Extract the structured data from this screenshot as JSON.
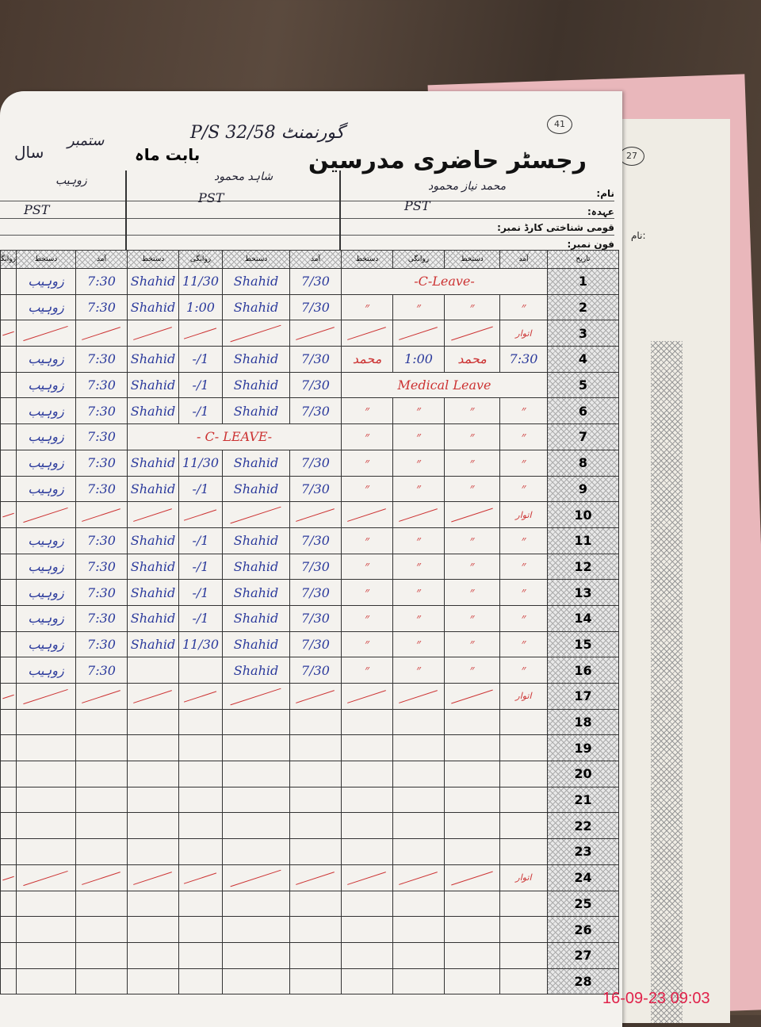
{
  "header": {
    "title": "رجسٹر حاضری مدرسین",
    "school": "گورنمنٹ P/S 32/58",
    "month_label": "بابت ماہ",
    "month": "ستمبر",
    "year_label": "سال",
    "page_number": "41",
    "back_page_number": "27"
  },
  "info_labels": {
    "name": "نام:",
    "designation": "عہدہ:",
    "cnic": "قومی شناختی کارڈ نمبر:",
    "phone": "فون نمبر:"
  },
  "teachers": [
    {
      "name": "محمد نیاز محمود",
      "designation": "PST"
    },
    {
      "name": "شاہد محمود",
      "designation": "PST"
    },
    {
      "name": "زوہیب",
      "designation": "PST"
    }
  ],
  "columns": {
    "date": "تاریخ",
    "arrival": "آمد",
    "signature": "دستخط",
    "departure": "روانگی"
  },
  "ink_colors": {
    "blue": "#2b3a9c",
    "red": "#cc3333"
  },
  "rows": [
    {
      "date": "1",
      "t1_note": "-C-Leave-",
      "t2": [
        "7/30",
        "Shahid",
        "11/30",
        "Shahid"
      ],
      "t3": [
        "7:30",
        "زوہیب"
      ]
    },
    {
      "date": "2",
      "t1": [
        "״",
        "״",
        "״",
        "״"
      ],
      "t2": [
        "7/30",
        "Shahid",
        "1:00",
        "Shahid"
      ],
      "t3": [
        "7:30",
        "زوہیب"
      ]
    },
    {
      "date": "3",
      "sunday": "اتوار"
    },
    {
      "date": "4",
      "t1": [
        "7:30",
        "محمد",
        "1:00",
        "محمد"
      ],
      "t2": [
        "7/30",
        "Shahid",
        "1/-",
        "Shahid"
      ],
      "t3": [
        "7:30",
        "زوہیب"
      ]
    },
    {
      "date": "5",
      "t1_note": "Medical Leave",
      "t2": [
        "7/30",
        "Shahid",
        "1/-",
        "Shahid"
      ],
      "t3": [
        "7:30",
        "زوہیب"
      ]
    },
    {
      "date": "6",
      "t1": [
        "״",
        "״",
        "״",
        "״"
      ],
      "t2": [
        "7/30",
        "Shahid",
        "1/-",
        "Shahid"
      ],
      "t3": [
        "7:30",
        "زوہیب"
      ]
    },
    {
      "date": "7",
      "t1": [
        "״",
        "״",
        "״",
        "״"
      ],
      "t2_note": "-C- LEAVE -",
      "t3": [
        "7:30",
        "زوہیب"
      ]
    },
    {
      "date": "8",
      "t1": [
        "״",
        "״",
        "״",
        "״"
      ],
      "t2": [
        "7/30",
        "Shahid",
        "11/30",
        "Shahid"
      ],
      "t3": [
        "7:30",
        "زوہیب"
      ]
    },
    {
      "date": "9",
      "t1": [
        "״",
        "״",
        "״",
        "״"
      ],
      "t2": [
        "7/30",
        "Shahid",
        "1/-",
        "Shahid"
      ],
      "t3": [
        "7:30",
        "زوہیب"
      ]
    },
    {
      "date": "10",
      "sunday": "اتوار"
    },
    {
      "date": "11",
      "t1": [
        "״",
        "״",
        "״",
        "״"
      ],
      "t2": [
        "7/30",
        "Shahid",
        "1/-",
        "Shahid"
      ],
      "t3": [
        "7:30",
        "زوہیب"
      ]
    },
    {
      "date": "12",
      "t1": [
        "״",
        "״",
        "״",
        "״"
      ],
      "t2": [
        "7/30",
        "Shahid",
        "1/-",
        "Shahid"
      ],
      "t3": [
        "7:30",
        "زوہیب"
      ]
    },
    {
      "date": "13",
      "t1": [
        "״",
        "״",
        "״",
        "״"
      ],
      "t2": [
        "7/30",
        "Shahid",
        "1/-",
        "Shahid"
      ],
      "t3": [
        "7:30",
        "زوہیب"
      ]
    },
    {
      "date": "14",
      "t1": [
        "״",
        "״",
        "״",
        "״"
      ],
      "t2": [
        "7/30",
        "Shahid",
        "1/-",
        "Shahid"
      ],
      "t3": [
        "7:30",
        "زوہیب"
      ]
    },
    {
      "date": "15",
      "t1": [
        "״",
        "״",
        "״",
        "״"
      ],
      "t2": [
        "7/30",
        "Shahid",
        "11/30",
        "Shahid"
      ],
      "t3": [
        "7:30",
        "زوہیب"
      ]
    },
    {
      "date": "16",
      "t1": [
        "״",
        "״",
        "״",
        "״"
      ],
      "t2": [
        "7/30",
        "Shahid",
        "",
        ""
      ],
      "t3": [
        "7:30",
        "زوہیب"
      ]
    },
    {
      "date": "17",
      "sunday": "اتوار"
    },
    {
      "date": "18"
    },
    {
      "date": "19"
    },
    {
      "date": "20"
    },
    {
      "date": "21"
    },
    {
      "date": "22"
    },
    {
      "date": "23"
    },
    {
      "date": "24",
      "sunday": "اتوار"
    },
    {
      "date": "25"
    },
    {
      "date": "26"
    },
    {
      "date": "27"
    },
    {
      "date": "28"
    }
  ],
  "timestamp": "16-09-23  09:03"
}
